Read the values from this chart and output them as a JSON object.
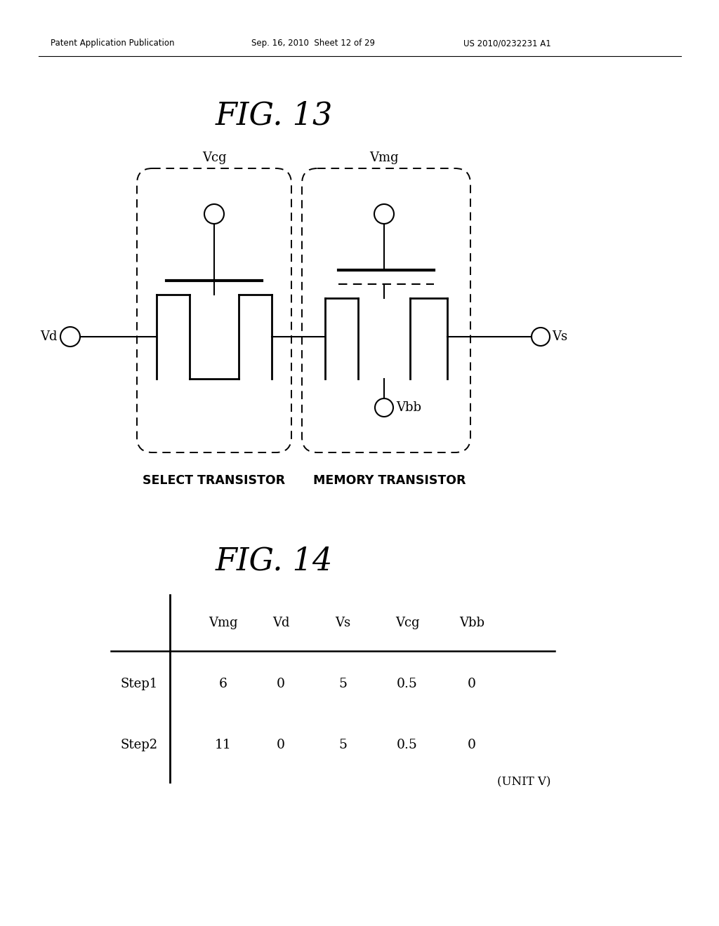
{
  "background_color": "#ffffff",
  "header_left": "Patent Application Publication",
  "header_mid": "Sep. 16, 2010  Sheet 12 of 29",
  "header_right": "US 2010/0232231 A1",
  "fig13_title": "FIG. 13",
  "fig14_title": "FIG. 14",
  "select_label": "SELECT TRANSISTOR",
  "memory_label": "MEMORY TRANSISTOR",
  "vcg_label": "Vcg",
  "vmg_label": "Vmg",
  "vd_label": "Vd",
  "vs_label": "Vs",
  "vbb_label": "Vbb",
  "table_headers": [
    "Vmg",
    "Vd",
    "Vs",
    "Vcg",
    "Vbb"
  ],
  "table_rows": [
    {
      "label": "Step1",
      "values": [
        "6",
        "0",
        "5",
        "0.5",
        "0"
      ]
    },
    {
      "label": "Step2",
      "values": [
        "11",
        "0",
        "5",
        "0.5",
        "0"
      ]
    }
  ],
  "unit_label": "(UNIT V)",
  "lw_thick": 2.0,
  "lw_thin": 1.5,
  "lw_header": 1.2
}
